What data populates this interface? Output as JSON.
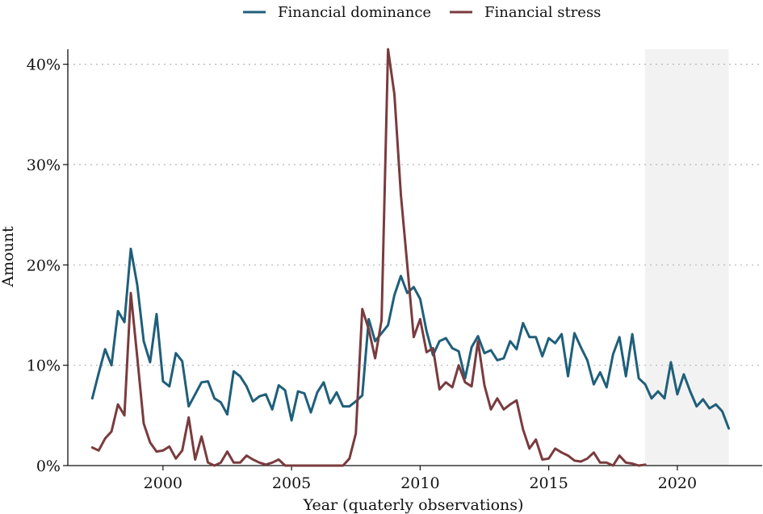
{
  "chart_data": {
    "type": "line",
    "title": "",
    "xlabel": "Year (quaterly observations)",
    "ylabel": "Amount",
    "xlim": [
      1996.3,
      2023.3
    ],
    "ylim": [
      0,
      41.5
    ],
    "x_ticks": [
      2000,
      2005,
      2010,
      2015,
      2020
    ],
    "x_tick_labels": [
      "2000",
      "2005",
      "2010",
      "2015",
      "2020"
    ],
    "y_ticks": [
      0,
      10,
      20,
      30,
      40
    ],
    "y_tick_labels": [
      "0%",
      "10%",
      "20%",
      "30%",
      "40%"
    ],
    "grid": "horizontal dotted",
    "legend_position": "top",
    "shaded_region": {
      "x_start": 2018.75,
      "x_end": 2022.0,
      "color": "#f2f2f2"
    },
    "series": [
      {
        "name": "Financial dominance",
        "color": "#1f5f7a",
        "x": [
          1997.25,
          1997.5,
          1997.75,
          1998.0,
          1998.25,
          1998.5,
          1998.75,
          1999.0,
          1999.25,
          1999.5,
          1999.75,
          2000.0,
          2000.25,
          2000.5,
          2000.75,
          2001.0,
          2001.25,
          2001.5,
          2001.75,
          2002.0,
          2002.25,
          2002.5,
          2002.75,
          2003.0,
          2003.25,
          2003.5,
          2003.75,
          2004.0,
          2004.25,
          2004.5,
          2004.75,
          2005.0,
          2005.25,
          2005.5,
          2005.75,
          2006.0,
          2006.25,
          2006.5,
          2006.75,
          2007.0,
          2007.25,
          2007.5,
          2007.75,
          2008.0,
          2008.25,
          2008.5,
          2008.75,
          2009.0,
          2009.25,
          2009.5,
          2009.75,
          2010.0,
          2010.25,
          2010.5,
          2010.75,
          2011.0,
          2011.25,
          2011.5,
          2011.75,
          2012.0,
          2012.25,
          2012.5,
          2012.75,
          2013.0,
          2013.25,
          2013.5,
          2013.75,
          2014.0,
          2014.25,
          2014.5,
          2014.75,
          2015.0,
          2015.25,
          2015.5,
          2015.75,
          2016.0,
          2016.25,
          2016.5,
          2016.75,
          2017.0,
          2017.25,
          2017.5,
          2017.75,
          2018.0,
          2018.25,
          2018.5,
          2018.75,
          2019.0,
          2019.25,
          2019.5,
          2019.75,
          2020.0,
          2020.25,
          2020.5,
          2020.75,
          2021.0,
          2021.25,
          2021.5,
          2021.75,
          2022.0
        ],
        "values": [
          6.7,
          9.2,
          11.6,
          10.0,
          15.4,
          14.3,
          21.6,
          18.0,
          12.4,
          10.3,
          15.1,
          8.4,
          7.9,
          11.2,
          10.4,
          5.9,
          7.1,
          8.3,
          8.4,
          6.7,
          6.3,
          5.1,
          9.4,
          8.9,
          7.9,
          6.4,
          6.9,
          7.1,
          5.6,
          8.0,
          7.5,
          4.5,
          7.4,
          7.2,
          5.3,
          7.3,
          8.3,
          6.2,
          7.3,
          5.9,
          5.9,
          6.4,
          7.0,
          14.6,
          12.4,
          13.2,
          14.0,
          17.0,
          18.9,
          17.2,
          17.8,
          16.6,
          13.4,
          11.0,
          12.4,
          12.7,
          11.7,
          11.4,
          8.7,
          11.8,
          12.9,
          11.2,
          11.5,
          10.5,
          10.7,
          12.4,
          11.6,
          14.2,
          12.8,
          12.8,
          10.9,
          12.7,
          12.2,
          13.1,
          8.9,
          13.2,
          11.8,
          10.5,
          8.1,
          9.3,
          7.8,
          11.1,
          12.8,
          8.9,
          13.1,
          8.7,
          8.1,
          6.7,
          7.4,
          6.7,
          10.3,
          7.1,
          9.1,
          7.4,
          5.9,
          6.6,
          5.7,
          6.1,
          5.4,
          3.7
        ]
      },
      {
        "name": "Financial stress",
        "color": "#7a3b3e",
        "x": [
          1997.25,
          1997.5,
          1997.75,
          1998.0,
          1998.25,
          1998.5,
          1998.75,
          1999.0,
          1999.25,
          1999.5,
          1999.75,
          2000.0,
          2000.25,
          2000.5,
          2000.75,
          2001.0,
          2001.25,
          2001.5,
          2001.75,
          2002.0,
          2002.25,
          2002.5,
          2002.75,
          2003.0,
          2003.25,
          2003.5,
          2003.75,
          2004.0,
          2004.25,
          2004.5,
          2004.75,
          2005.0,
          2005.25,
          2005.5,
          2005.75,
          2006.0,
          2006.25,
          2006.5,
          2006.75,
          2007.0,
          2007.25,
          2007.5,
          2007.75,
          2008.0,
          2008.25,
          2008.5,
          2008.75,
          2009.0,
          2009.25,
          2009.5,
          2009.75,
          2010.0,
          2010.25,
          2010.5,
          2010.75,
          2011.0,
          2011.25,
          2011.5,
          2011.75,
          2012.0,
          2012.25,
          2012.5,
          2012.75,
          2013.0,
          2013.25,
          2013.5,
          2013.75,
          2014.0,
          2014.25,
          2014.5,
          2014.75,
          2015.0,
          2015.25,
          2015.5,
          2015.75,
          2016.0,
          2016.25,
          2016.5,
          2016.75,
          2017.0,
          2017.25,
          2017.5,
          2017.75,
          2018.0,
          2018.25,
          2018.5,
          2018.75
        ],
        "values": [
          1.8,
          1.5,
          2.7,
          3.4,
          6.1,
          5.0,
          17.2,
          10.8,
          4.2,
          2.3,
          1.4,
          1.5,
          1.9,
          0.7,
          1.5,
          4.8,
          0.6,
          2.9,
          0.3,
          0.0,
          0.3,
          1.4,
          0.3,
          0.3,
          1.0,
          0.6,
          0.3,
          0.1,
          0.3,
          0.6,
          0.0,
          0.0,
          0.0,
          0.0,
          0.0,
          0.0,
          0.0,
          0.0,
          0.0,
          0.0,
          0.7,
          3.2,
          15.6,
          13.6,
          10.7,
          14.5,
          41.5,
          37.0,
          27.0,
          20.0,
          12.8,
          14.6,
          11.3,
          11.7,
          7.6,
          8.3,
          7.8,
          10.0,
          8.3,
          7.9,
          12.4,
          8.0,
          5.6,
          6.7,
          5.6,
          6.1,
          6.5,
          3.6,
          1.7,
          2.6,
          0.6,
          0.7,
          1.7,
          1.3,
          1.0,
          0.5,
          0.4,
          0.7,
          1.3,
          0.3,
          0.3,
          0.0,
          1.0,
          0.3,
          0.2,
          0.0,
          0.1
        ]
      }
    ]
  }
}
